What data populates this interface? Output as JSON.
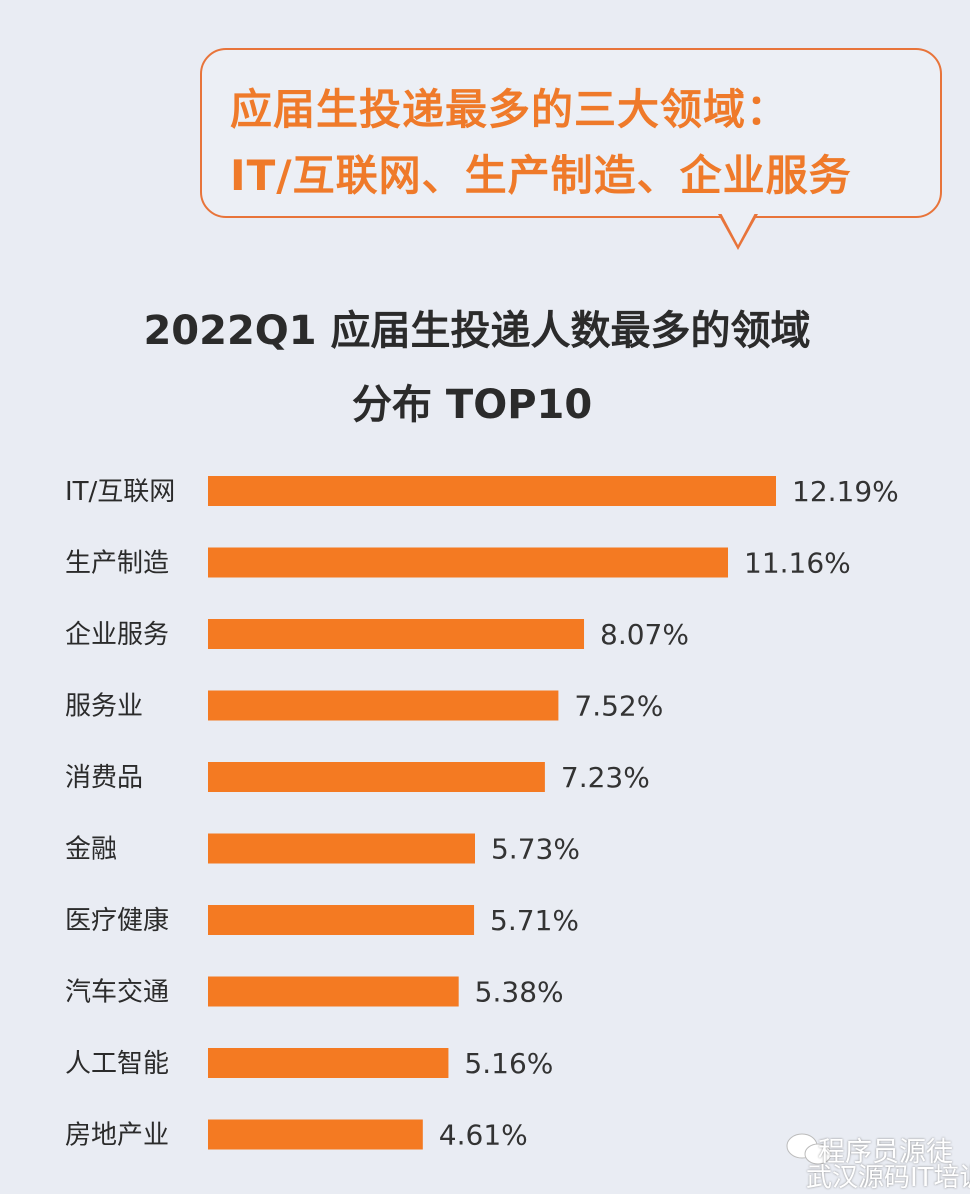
{
  "callout": {
    "line1": "应届生投递最多的三大领域：",
    "line2": "IT/互联网、生产制造、企业服务",
    "border_color": "#e8743a",
    "text_color": "#ef7a2a"
  },
  "chart_data": {
    "type": "bar",
    "orientation": "horizontal",
    "title_line1": "2022Q1 应届生投递人数最多的领域",
    "title_line2": "分布 TOP10",
    "categories": [
      "IT/互联网",
      "生产制造",
      "企业服务",
      "服务业",
      "消费品",
      "金融",
      "医疗健康",
      "汽车交通",
      "人工智能",
      "房地产业"
    ],
    "values": [
      12.19,
      11.16,
      8.07,
      7.52,
      7.23,
      5.73,
      5.71,
      5.38,
      5.16,
      4.61
    ],
    "data_labels": [
      "12.19%",
      "11.16%",
      "8.07%",
      "7.52%",
      "7.23%",
      "5.73%",
      "5.71%",
      "5.38%",
      "5.16%",
      "4.61%"
    ],
    "unit": "%",
    "bar_color": "#f47a22",
    "grid": false,
    "legend": "none"
  },
  "watermark": {
    "line1": "程序员源徒",
    "line2": "武汉源码IT培训",
    "icon": "wechat-icon"
  }
}
